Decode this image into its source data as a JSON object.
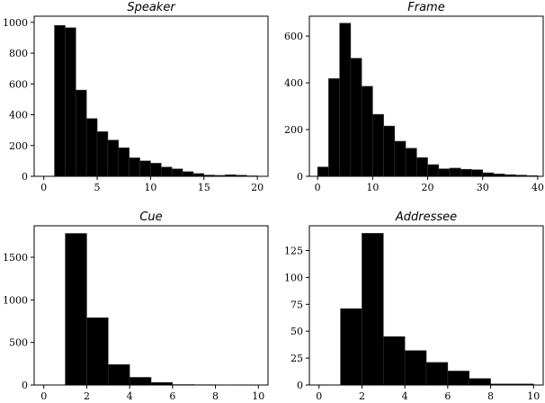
{
  "chart_data": [
    {
      "type": "bar",
      "title": "Speaker",
      "xlim": [
        -0.9,
        21
      ],
      "ylim": [
        0,
        1040
      ],
      "xticks": [
        0,
        5,
        10,
        15,
        20
      ],
      "yticks": [
        0,
        200,
        400,
        600,
        800,
        1000
      ],
      "bins": [
        [
          1,
          2,
          980
        ],
        [
          2,
          3,
          965
        ],
        [
          3,
          4,
          560
        ],
        [
          4,
          5,
          375
        ],
        [
          5,
          6,
          290
        ],
        [
          6,
          7,
          235
        ],
        [
          7,
          8,
          185
        ],
        [
          8,
          9,
          120
        ],
        [
          9,
          10,
          100
        ],
        [
          10,
          11,
          85
        ],
        [
          11,
          12,
          60
        ],
        [
          12,
          13,
          48
        ],
        [
          13,
          14,
          30
        ],
        [
          14,
          15,
          18
        ],
        [
          15,
          16,
          8
        ],
        [
          16,
          17,
          6
        ],
        [
          17,
          18,
          10
        ],
        [
          18,
          19,
          7
        ],
        [
          19,
          20,
          3
        ]
      ]
    },
    {
      "type": "bar",
      "title": "Frame",
      "xlim": [
        -1.5,
        41
      ],
      "ylim": [
        0,
        685
      ],
      "xticks": [
        0,
        10,
        20,
        30,
        40
      ],
      "yticks": [
        0,
        200,
        400,
        600
      ],
      "bins": [
        [
          0,
          2,
          40
        ],
        [
          2,
          4,
          418
        ],
        [
          4,
          6,
          655
        ],
        [
          6,
          8,
          505
        ],
        [
          8,
          10,
          385
        ],
        [
          10,
          12,
          265
        ],
        [
          12,
          14,
          215
        ],
        [
          14,
          16,
          150
        ],
        [
          16,
          18,
          120
        ],
        [
          18,
          20,
          80
        ],
        [
          20,
          22,
          50
        ],
        [
          22,
          24,
          32
        ],
        [
          24,
          26,
          35
        ],
        [
          26,
          28,
          30
        ],
        [
          28,
          30,
          28
        ],
        [
          30,
          32,
          15
        ],
        [
          32,
          34,
          10
        ],
        [
          34,
          36,
          7
        ],
        [
          36,
          38,
          5
        ],
        [
          38,
          40,
          3
        ]
      ]
    },
    {
      "type": "bar",
      "title": "Cue",
      "xlim": [
        -0.45,
        10.45
      ],
      "ylim": [
        0,
        1870
      ],
      "xticks": [
        0,
        2,
        4,
        6,
        8,
        10
      ],
      "yticks": [
        0,
        500,
        1000,
        1500
      ],
      "bins": [
        [
          1,
          2,
          1780
        ],
        [
          2,
          3,
          790
        ],
        [
          3,
          4,
          240
        ],
        [
          4,
          5,
          90
        ],
        [
          5,
          6,
          30
        ],
        [
          6,
          7,
          5
        ],
        [
          7,
          8,
          3
        ],
        [
          8,
          9,
          2
        ],
        [
          9,
          10,
          1
        ]
      ]
    },
    {
      "type": "bar",
      "title": "Addressee",
      "xlim": [
        -0.45,
        10.45
      ],
      "ylim": [
        0,
        148
      ],
      "xticks": [
        0,
        2,
        4,
        6,
        8,
        10
      ],
      "yticks": [
        0,
        25,
        50,
        75,
        100,
        125
      ],
      "bins": [
        [
          1,
          2,
          71
        ],
        [
          2,
          3,
          141
        ],
        [
          3,
          4,
          45
        ],
        [
          4,
          5,
          32
        ],
        [
          5,
          6,
          21
        ],
        [
          6,
          7,
          13
        ],
        [
          7,
          8,
          6
        ],
        [
          8,
          9,
          1
        ],
        [
          9,
          10,
          1
        ]
      ]
    }
  ]
}
